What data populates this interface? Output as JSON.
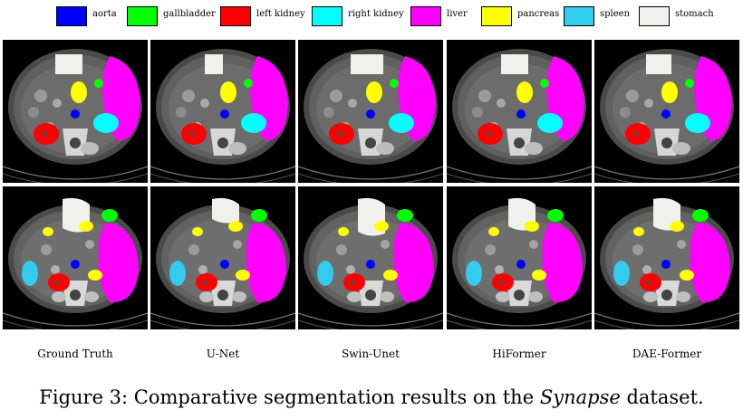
{
  "legend": [
    {
      "label": "aorta",
      "color": "#0000ff"
    },
    {
      "label": "gallbladder",
      "color": "#00ff00"
    },
    {
      "label": "left kidney",
      "color": "#ff0000"
    },
    {
      "label": "right kidney",
      "color": "#00ffff"
    },
    {
      "label": "liver",
      "color": "#ff00ff"
    },
    {
      "label": "pancreas",
      "color": "#ffff00"
    },
    {
      "label": "spleen",
      "color": "#33ccee"
    },
    {
      "label": "stomach",
      "color": "#f0f0ec"
    }
  ],
  "columns": [
    "Ground Truth",
    "U-Net",
    "Swin-Unet",
    "HiFormer",
    "DAE-Former"
  ],
  "caption": {
    "prefix": "Figure 3: Comparative segmentation results on the ",
    "emphasis": "Synapse",
    "suffix": " dataset."
  }
}
